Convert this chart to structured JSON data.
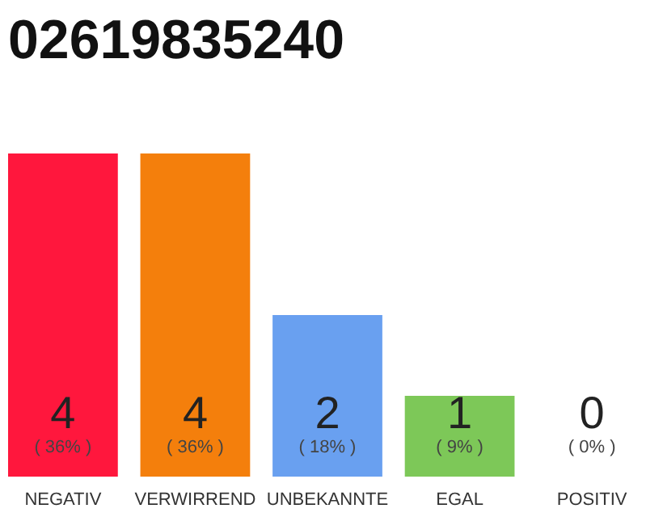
{
  "chart_data": {
    "type": "bar",
    "title": "02619835240",
    "categories": [
      "NEGATIV",
      "VERWIRREND",
      "UNBEKANNTE",
      "EGAL",
      "POSITIV"
    ],
    "values": [
      36,
      36,
      18,
      9,
      0
    ],
    "colors": [
      "#ff173d",
      "#f47f0c",
      "#69a0f0",
      "#7dc858",
      "#e8e8e8"
    ],
    "value_labels": [
      "( 36% )",
      "( 36% )",
      "( 18% )",
      "( 9% )",
      "( 0% )"
    ],
    "annotations": [
      "4",
      "4",
      "2",
      "1",
      "0"
    ]
  }
}
